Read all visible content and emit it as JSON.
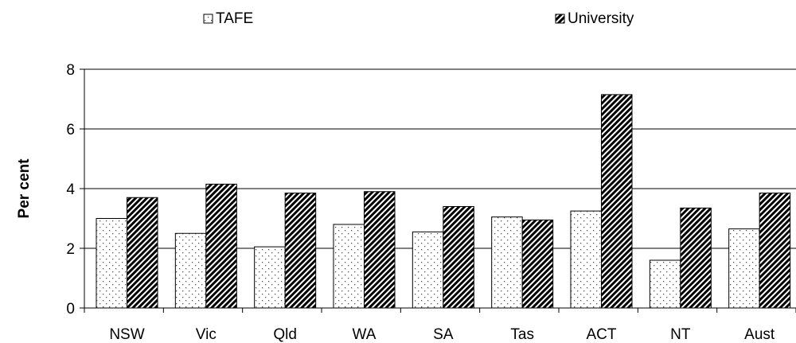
{
  "chart_data": {
    "type": "bar",
    "title": "",
    "xlabel": "",
    "ylabel": "Per cent",
    "ylim": [
      0,
      8
    ],
    "yticks": [
      0,
      2,
      4,
      6,
      8
    ],
    "grid": true,
    "legend_position": "top",
    "categories": [
      "NSW",
      "Vic",
      "Qld",
      "WA",
      "SA",
      "Tas",
      "ACT",
      "NT",
      "Aust"
    ],
    "series": [
      {
        "name": "TAFE",
        "pattern": "dotted",
        "color": "#ffffff",
        "values": [
          3.0,
          2.5,
          2.05,
          2.8,
          2.55,
          3.05,
          3.25,
          1.6,
          2.65
        ]
      },
      {
        "name": "University",
        "pattern": "diagonal-stripes",
        "color": "#000000",
        "values": [
          3.7,
          4.15,
          3.85,
          3.9,
          3.4,
          2.95,
          7.15,
          3.35,
          3.85
        ]
      }
    ]
  }
}
